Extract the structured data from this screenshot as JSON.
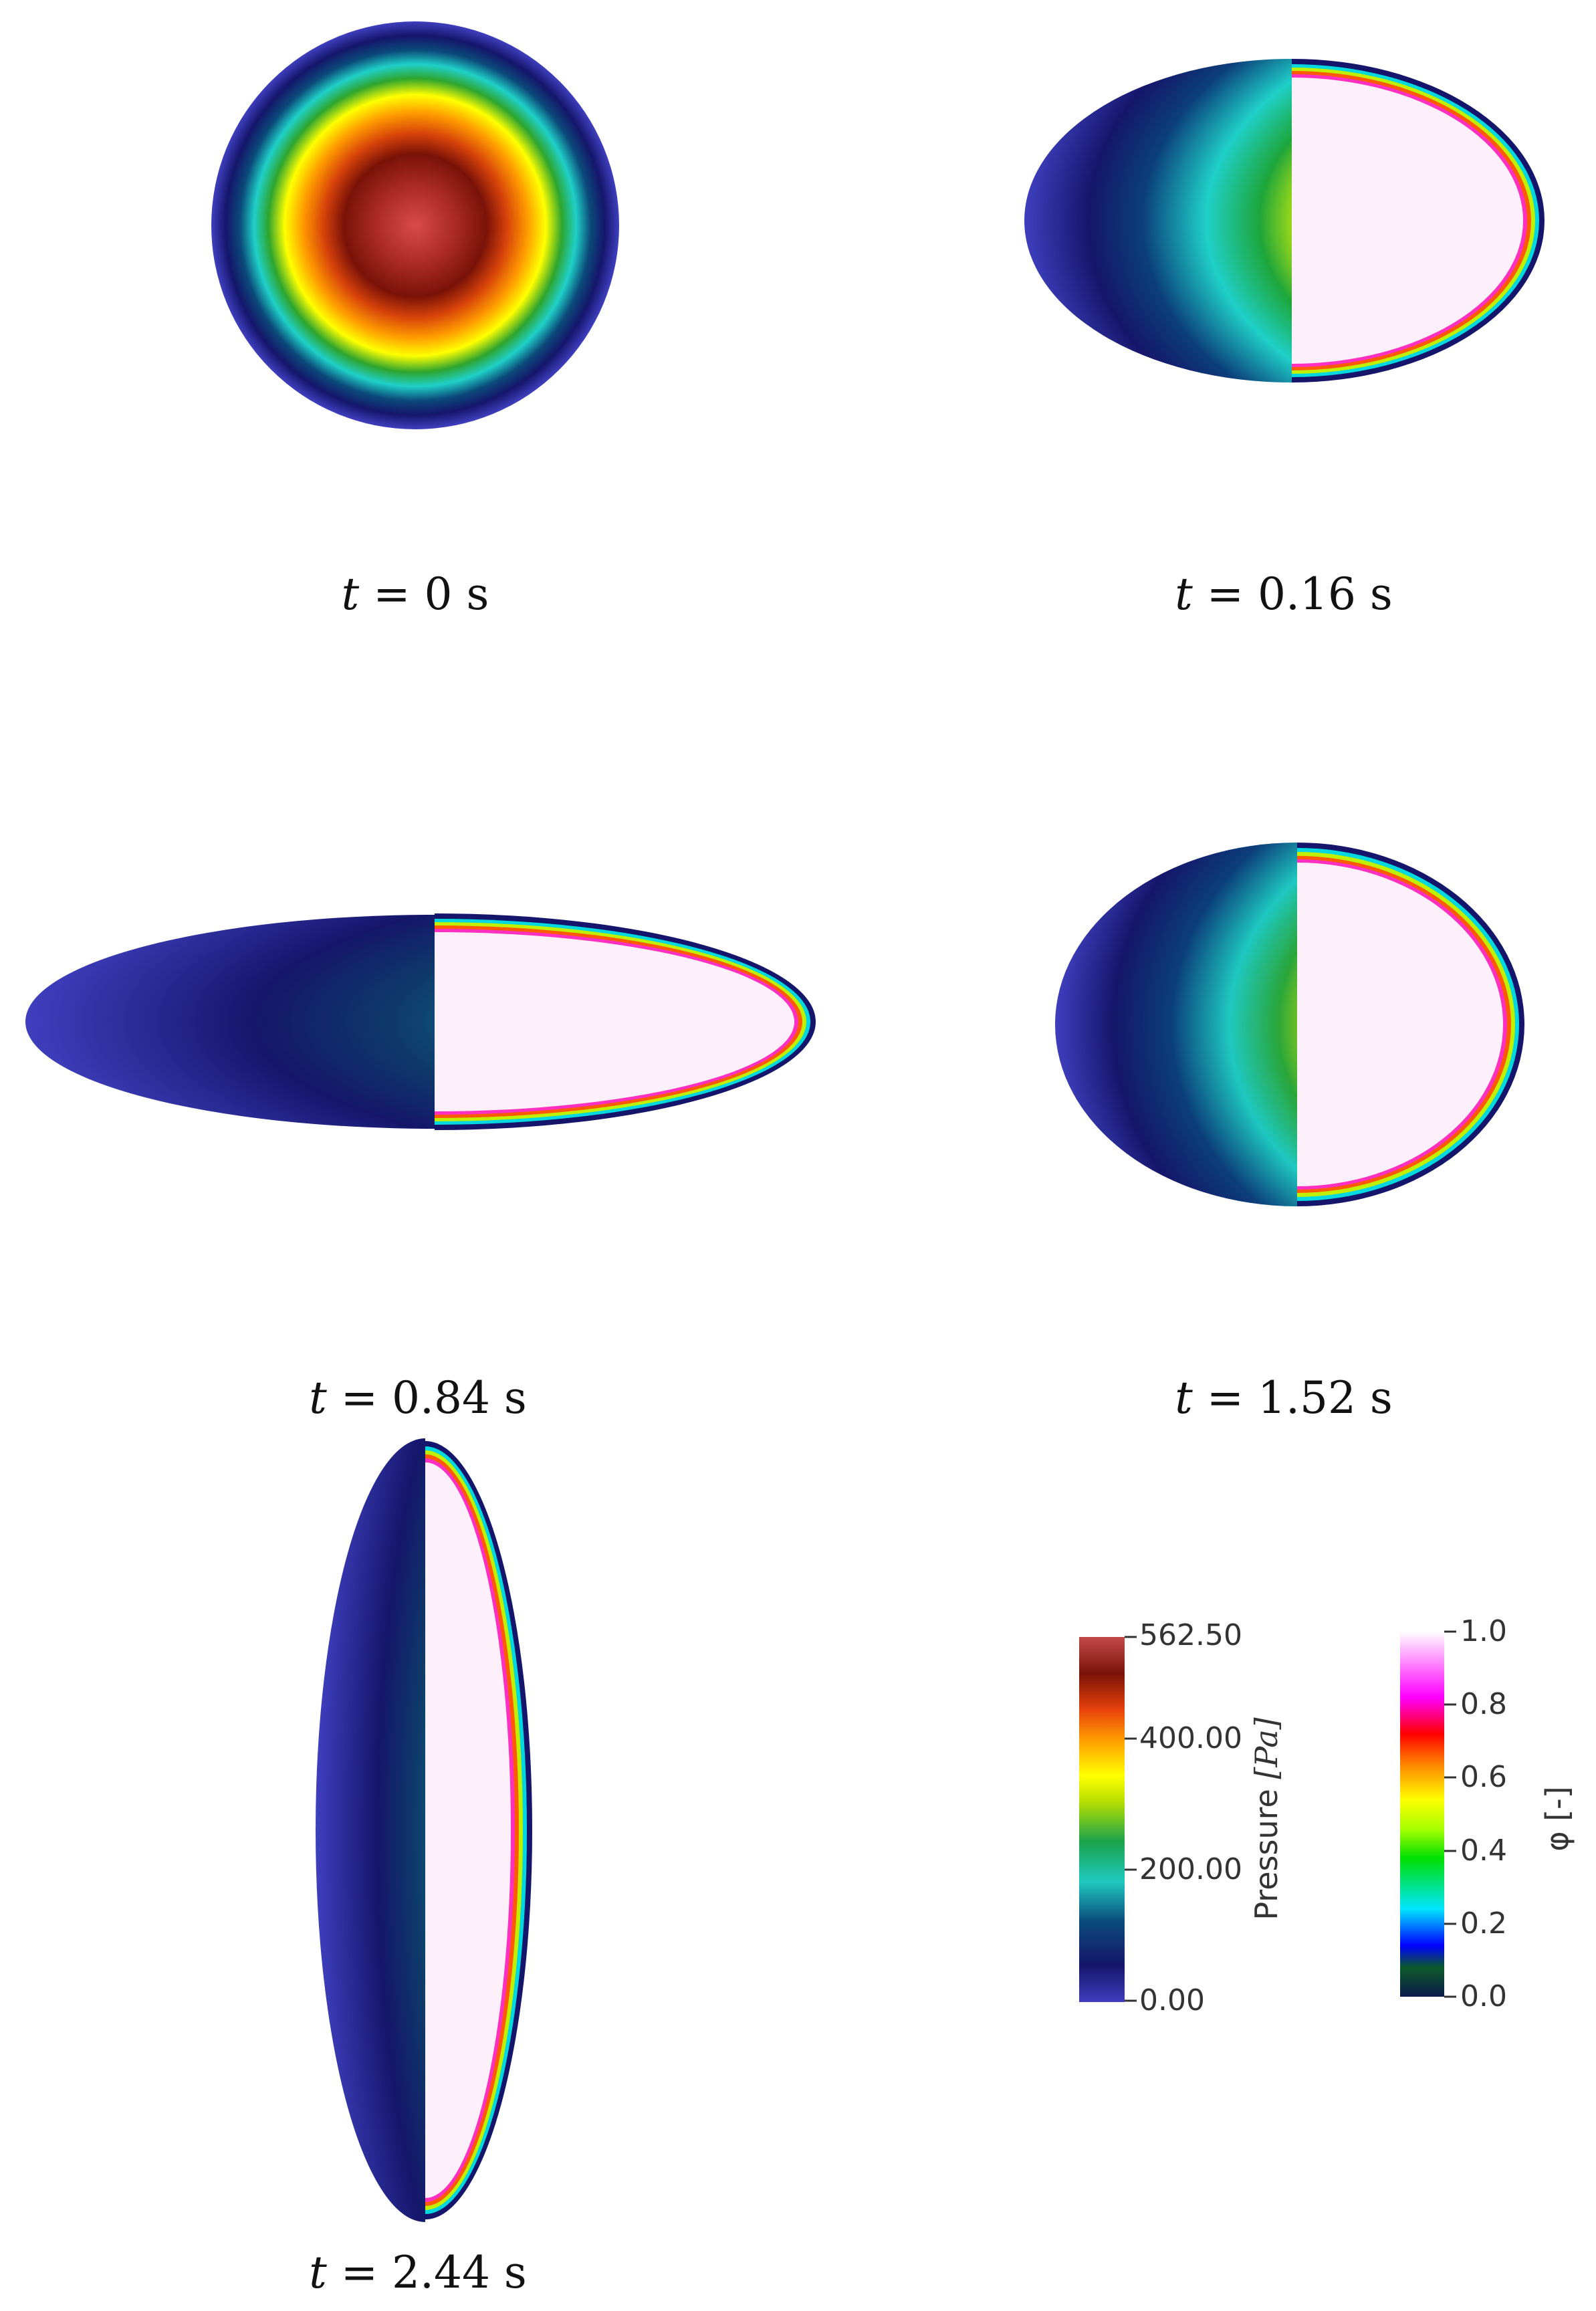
{
  "panels": [
    {
      "id": "p1",
      "t": "0 s",
      "caption_prefix": "t",
      "caption_eq": " = ",
      "split": false
    },
    {
      "id": "p2",
      "t": "0.16 s",
      "caption_prefix": "t",
      "caption_eq": " = ",
      "split": true
    },
    {
      "id": "p3",
      "t": "0.84 s",
      "caption_prefix": "t",
      "caption_eq": " = ",
      "split": true
    },
    {
      "id": "p4",
      "t": "1.52 s",
      "caption_prefix": "t",
      "caption_eq": " = ",
      "split": true
    },
    {
      "id": "p5",
      "t": "2.44 s",
      "caption_prefix": "t",
      "caption_eq": " = ",
      "split": true
    }
  ],
  "pressure_colorbar": {
    "title": "Pressure [Pa]",
    "title_plain": "Pressure ",
    "title_unit": "[Pa]",
    "ticks": [
      "562.50",
      "400.00",
      "200.00",
      "0.00"
    ],
    "tick_values": [
      562.5,
      400,
      200,
      0
    ],
    "range": [
      0,
      562.5
    ],
    "colors": [
      "#3f3fbf",
      "#15166b",
      "#0b4a7a",
      "#1fc9c0",
      "#1aa34a",
      "#b8e000",
      "#ffff00",
      "#ff9a00",
      "#e8420c",
      "#7a1208",
      "#c44a4a"
    ]
  },
  "phi_colorbar": {
    "title": "φ [-]",
    "ticks": [
      "1.0",
      "0.8",
      "0.6",
      "0.4",
      "0.2",
      "0.0"
    ],
    "tick_values": [
      1.0,
      0.8,
      0.6,
      0.4,
      0.2,
      0.0
    ],
    "range": [
      0,
      1
    ],
    "colors": [
      "#0b1a4a",
      "#0c5a2a",
      "#0000ff",
      "#00e5ff",
      "#00e000",
      "#a8ff00",
      "#ffff00",
      "#ff8000",
      "#ff0000",
      "#ff00ff",
      "#ffffff"
    ]
  }
}
